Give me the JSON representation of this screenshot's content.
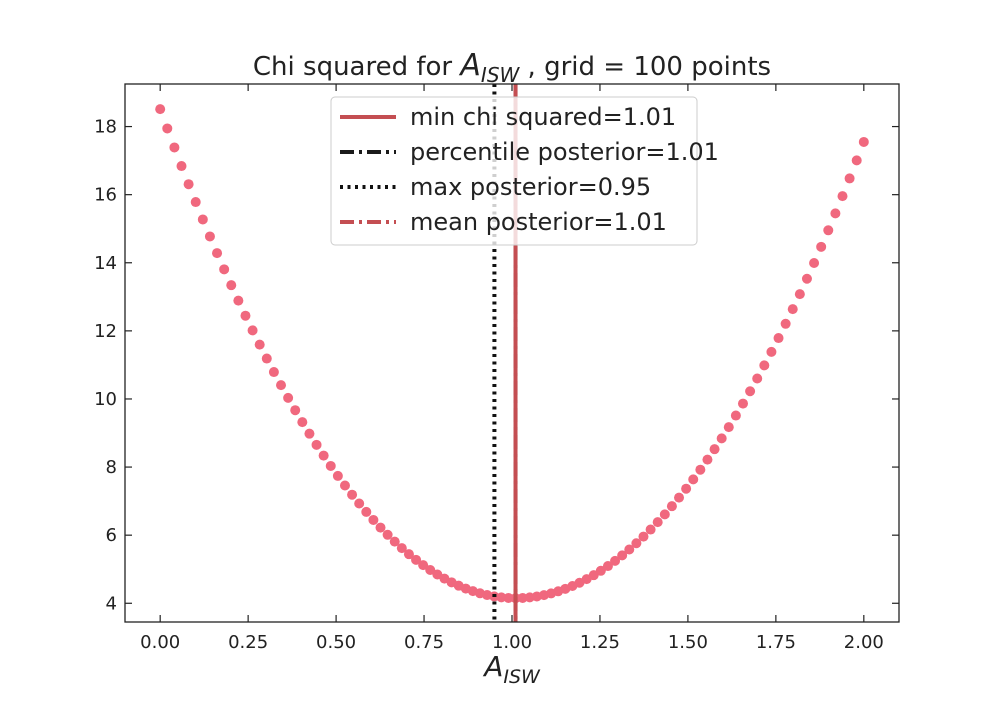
{
  "chart_data": {
    "type": "scatter",
    "title": {
      "prefix": "Chi squared for ",
      "symbol_main": "A",
      "symbol_sub": "ISW",
      "suffix": " , grid = 100 points"
    },
    "xlabel": {
      "main": "A",
      "sub": "ISW"
    },
    "ylabel": "",
    "xlim": [
      -0.1,
      2.1
    ],
    "ylim": [
      3.45,
      19.25
    ],
    "xticks": [
      0.0,
      0.25,
      0.5,
      0.75,
      1.0,
      1.25,
      1.5,
      1.75,
      2.0
    ],
    "xtick_labels": [
      "0.00",
      "0.25",
      "0.50",
      "0.75",
      "1.00",
      "1.25",
      "1.50",
      "1.75",
      "2.00"
    ],
    "yticks": [
      4,
      6,
      8,
      10,
      12,
      14,
      16,
      18
    ],
    "ytick_labels": [
      "4",
      "6",
      "8",
      "10",
      "12",
      "14",
      "16",
      "18"
    ],
    "grid": false,
    "legend_position": "top-center",
    "series": [
      {
        "kind": "points",
        "color": "#f0687e",
        "curve": {
          "x_min": 1.01,
          "y_min": 4.15,
          "coef_left": 14.08,
          "coef_right": 13.67
        },
        "x_start": 0.0,
        "x_end": 2.0,
        "count": 100
      }
    ],
    "vlines": [
      {
        "name": "min chi squared=1.01",
        "x": 1.01,
        "style": "solid",
        "color": "#c44e52"
      },
      {
        "name": "percentile posterior=1.01",
        "x": 1.01,
        "style": "dashdot",
        "color": "#1a1a1a"
      },
      {
        "name": "max posterior=0.95",
        "x": 0.95,
        "style": "dotted",
        "color": "#111111"
      },
      {
        "name": "mean posterior=1.01",
        "x": 1.01,
        "style": "dashdot",
        "color": "#c44e52"
      }
    ]
  }
}
